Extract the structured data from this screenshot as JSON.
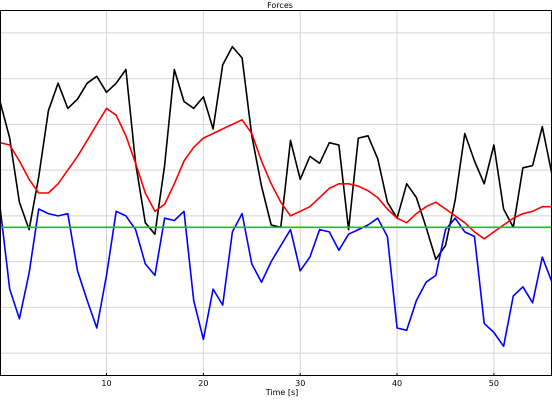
{
  "chart_data": {
    "type": "line",
    "title": "Forces",
    "xlabel": "Time [s]",
    "ylabel": "",
    "xlim": [
      -1,
      56
    ],
    "ylim": [
      -6,
      10
    ],
    "grid": true,
    "x_ticks": [
      10,
      20,
      30,
      40,
      50
    ],
    "x_tick_labels": [
      "10",
      "20",
      "30",
      "40",
      "50"
    ],
    "y_gridlines": [
      -5,
      -3,
      -1,
      1,
      3,
      5,
      7,
      9
    ],
    "series": [
      {
        "color": "#000000",
        "x": [
          -1,
          0,
          1,
          2,
          3,
          4,
          5,
          6,
          7,
          8,
          9,
          10,
          11,
          12,
          13,
          14,
          15,
          16,
          17,
          18,
          19,
          20,
          21,
          22,
          23,
          24,
          25,
          26,
          27,
          28,
          29,
          30,
          31,
          32,
          33,
          34,
          35,
          36,
          37,
          38,
          39,
          40,
          41,
          42,
          43,
          44,
          45,
          46,
          47,
          48,
          49,
          50,
          51,
          52,
          53,
          54,
          55,
          56
        ],
        "y": [
          6.0,
          4.4,
          1.6,
          0.4,
          2.7,
          5.6,
          6.8,
          5.7,
          6.1,
          6.8,
          7.1,
          6.4,
          6.8,
          7.4,
          3.3,
          0.7,
          0.2,
          3.2,
          7.4,
          6.0,
          5.7,
          6.2,
          4.8,
          7.6,
          8.4,
          7.9,
          4.5,
          2.3,
          0.6,
          0.5,
          4.3,
          2.6,
          3.6,
          3.3,
          4.2,
          4.1,
          0.4,
          4.4,
          4.5,
          3.5,
          1.6,
          0.9,
          2.4,
          1.8,
          0.5,
          -0.9,
          -0.3,
          1.7,
          4.6,
          3.4,
          2.4,
          4.1,
          1.3,
          0.5,
          3.1,
          3.2,
          4.9,
          2.8
        ]
      },
      {
        "color": "#ff0000",
        "x": [
          -1,
          0,
          1,
          2,
          3,
          4,
          5,
          6,
          7,
          8,
          9,
          10,
          11,
          12,
          13,
          14,
          15,
          16,
          17,
          18,
          19,
          20,
          21,
          22,
          23,
          24,
          25,
          26,
          27,
          28,
          29,
          30,
          31,
          32,
          33,
          34,
          35,
          36,
          37,
          38,
          39,
          40,
          41,
          42,
          43,
          44,
          45,
          46,
          47,
          48,
          49,
          50,
          51,
          52,
          53,
          54,
          55,
          56
        ],
        "y": [
          4.2,
          4.1,
          3.4,
          2.6,
          2.0,
          2.0,
          2.4,
          3.0,
          3.6,
          4.3,
          5.0,
          5.7,
          5.4,
          4.5,
          3.3,
          2.0,
          1.2,
          1.5,
          2.4,
          3.4,
          4.0,
          4.4,
          4.6,
          4.8,
          5.0,
          5.2,
          4.6,
          3.4,
          2.4,
          1.6,
          1.0,
          1.2,
          1.4,
          1.8,
          2.2,
          2.4,
          2.4,
          2.3,
          2.1,
          1.8,
          1.3,
          0.9,
          0.7,
          1.1,
          1.4,
          1.6,
          1.3,
          1.0,
          0.7,
          0.3,
          0.0,
          0.3,
          0.6,
          0.9,
          1.1,
          1.2,
          1.4,
          1.4
        ]
      },
      {
        "color": "#0000ff",
        "x": [
          -1,
          0,
          1,
          2,
          3,
          4,
          5,
          6,
          7,
          8,
          9,
          10,
          11,
          12,
          13,
          14,
          15,
          16,
          17,
          18,
          19,
          20,
          21,
          22,
          23,
          24,
          25,
          26,
          27,
          28,
          29,
          30,
          31,
          32,
          33,
          34,
          35,
          36,
          37,
          38,
          39,
          40,
          41,
          42,
          43,
          44,
          45,
          46,
          47,
          48,
          49,
          50,
          51,
          52,
          53,
          54,
          55,
          56
        ],
        "y": [
          1.4,
          -2.2,
          -3.5,
          -1.5,
          1.3,
          1.1,
          1.0,
          1.1,
          -1.4,
          -2.7,
          -3.9,
          -1.6,
          1.2,
          1.0,
          0.4,
          -1.1,
          -1.6,
          0.9,
          0.8,
          1.2,
          -2.7,
          -4.4,
          -2.2,
          -2.9,
          0.3,
          1.1,
          -1.1,
          -1.9,
          -1.0,
          -0.3,
          0.4,
          -1.4,
          -0.8,
          0.4,
          0.3,
          -0.5,
          0.2,
          0.4,
          0.6,
          0.9,
          0.1,
          -3.9,
          -4.0,
          -2.7,
          -1.9,
          -1.6,
          0.4,
          0.9,
          0.3,
          0.1,
          -3.7,
          -4.1,
          -4.7,
          -2.5,
          -2.1,
          -2.8,
          -0.8,
          -1.9
        ]
      },
      {
        "color": "#00cc00",
        "x": [
          -1,
          56
        ],
        "y": [
          0.5,
          0.5
        ]
      }
    ]
  }
}
